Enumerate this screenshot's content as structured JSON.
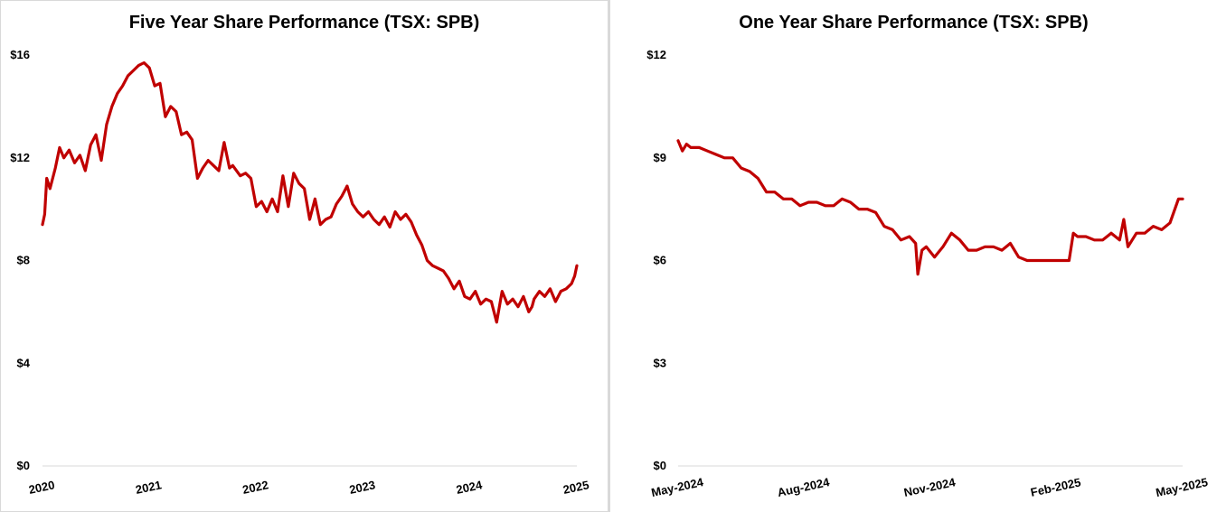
{
  "colors": {
    "line": "#c00000",
    "axis": "#d9d9d9",
    "background": "#ffffff"
  },
  "chart_data": [
    {
      "type": "line",
      "title": "Five Year Share Performance (TSX: SPB)",
      "xlabel": "",
      "ylabel": "",
      "ylim": [
        0,
        16
      ],
      "y_ticks": [
        0,
        4,
        8,
        12,
        16
      ],
      "y_tick_labels": [
        "$0",
        "$4",
        "$8",
        "$12",
        "$16"
      ],
      "xlim": [
        2020,
        2025
      ],
      "x_ticks": [
        2020,
        2021,
        2022,
        2023,
        2024,
        2025
      ],
      "x_tick_labels": [
        "2020",
        "2021",
        "2022",
        "2023",
        "2024",
        "2025"
      ],
      "x_tick_rotation": -12,
      "series": [
        {
          "name": "SPB",
          "x": [
            2020.0,
            2020.02,
            2020.04,
            2020.07,
            2020.12,
            2020.16,
            2020.2,
            2020.25,
            2020.3,
            2020.35,
            2020.4,
            2020.45,
            2020.5,
            2020.55,
            2020.6,
            2020.65,
            2020.7,
            2020.75,
            2020.8,
            2020.85,
            2020.9,
            2020.95,
            2021.0,
            2021.05,
            2021.1,
            2021.15,
            2021.2,
            2021.25,
            2021.3,
            2021.35,
            2021.4,
            2021.45,
            2021.5,
            2021.55,
            2021.6,
            2021.65,
            2021.7,
            2021.75,
            2021.78,
            2021.85,
            2021.9,
            2021.95,
            2022.0,
            2022.05,
            2022.1,
            2022.15,
            2022.2,
            2022.25,
            2022.3,
            2022.35,
            2022.4,
            2022.45,
            2022.5,
            2022.55,
            2022.6,
            2022.65,
            2022.7,
            2022.75,
            2022.8,
            2022.85,
            2022.9,
            2022.95,
            2023.0,
            2023.05,
            2023.1,
            2023.15,
            2023.2,
            2023.25,
            2023.3,
            2023.35,
            2023.4,
            2023.45,
            2023.5,
            2023.55,
            2023.6,
            2023.65,
            2023.7,
            2023.75,
            2023.8,
            2023.85,
            2023.9,
            2023.95,
            2024.0,
            2024.05,
            2024.1,
            2024.15,
            2024.2,
            2024.25,
            2024.3,
            2024.35,
            2024.4,
            2024.45,
            2024.5,
            2024.55,
            2024.58,
            2024.6,
            2024.65,
            2024.7,
            2024.75,
            2024.8,
            2024.85,
            2024.9,
            2024.95,
            2024.98,
            2025.0
          ],
          "values": [
            9.4,
            9.8,
            11.2,
            10.8,
            11.6,
            12.4,
            12.0,
            12.3,
            11.8,
            12.1,
            11.5,
            12.5,
            12.9,
            11.9,
            13.3,
            14.0,
            14.5,
            14.8,
            15.2,
            15.4,
            15.6,
            15.7,
            15.5,
            14.8,
            14.9,
            13.6,
            14.0,
            13.8,
            12.9,
            13.0,
            12.7,
            11.2,
            11.6,
            11.9,
            11.7,
            11.5,
            12.6,
            11.6,
            11.7,
            11.3,
            11.4,
            11.2,
            10.1,
            10.3,
            9.9,
            10.4,
            9.9,
            11.3,
            10.1,
            11.4,
            11.0,
            10.8,
            9.6,
            10.4,
            9.4,
            9.6,
            9.7,
            10.2,
            10.5,
            10.9,
            10.2,
            9.9,
            9.7,
            9.9,
            9.6,
            9.4,
            9.7,
            9.3,
            9.9,
            9.6,
            9.8,
            9.5,
            9.0,
            8.6,
            8.0,
            7.8,
            7.7,
            7.6,
            7.3,
            6.9,
            7.2,
            6.6,
            6.5,
            6.8,
            6.3,
            6.5,
            6.4,
            5.6,
            6.8,
            6.3,
            6.5,
            6.2,
            6.6,
            6.0,
            6.2,
            6.5,
            6.8,
            6.6,
            6.9,
            6.4,
            6.8,
            6.9,
            7.1,
            7.4,
            7.8
          ]
        }
      ]
    },
    {
      "type": "line",
      "title": "One Year Share Performance (TSX: SPB)",
      "xlabel": "",
      "ylabel": "",
      "ylim": [
        0,
        12
      ],
      "y_ticks": [
        0,
        3,
        6,
        9,
        12
      ],
      "y_tick_labels": [
        "$0",
        "$3",
        "$6",
        "$9",
        "$12"
      ],
      "xlim": [
        0,
        12
      ],
      "x_ticks": [
        0,
        3,
        6,
        9,
        12
      ],
      "x_tick_labels": [
        "May-2024",
        "Aug-2024",
        "Nov-2024",
        "Feb-2025",
        "May-2025"
      ],
      "x_tick_rotation": -12,
      "series": [
        {
          "name": "SPB",
          "x": [
            0.0,
            0.1,
            0.2,
            0.3,
            0.5,
            0.7,
            0.9,
            1.1,
            1.3,
            1.5,
            1.7,
            1.9,
            2.1,
            2.3,
            2.5,
            2.7,
            2.9,
            3.1,
            3.3,
            3.5,
            3.7,
            3.9,
            4.1,
            4.3,
            4.5,
            4.7,
            4.9,
            5.1,
            5.3,
            5.5,
            5.65,
            5.7,
            5.8,
            5.9,
            6.1,
            6.3,
            6.5,
            6.7,
            6.9,
            7.1,
            7.3,
            7.5,
            7.7,
            7.9,
            8.1,
            8.3,
            8.5,
            8.7,
            8.9,
            9.1,
            9.3,
            9.4,
            9.5,
            9.7,
            9.9,
            10.1,
            10.3,
            10.5,
            10.6,
            10.7,
            10.9,
            11.1,
            11.3,
            11.5,
            11.7,
            11.9,
            12.0
          ],
          "values": [
            9.5,
            9.2,
            9.4,
            9.3,
            9.3,
            9.2,
            9.1,
            9.0,
            9.0,
            8.7,
            8.6,
            8.4,
            8.0,
            8.0,
            7.8,
            7.8,
            7.6,
            7.7,
            7.7,
            7.6,
            7.6,
            7.8,
            7.7,
            7.5,
            7.5,
            7.4,
            7.0,
            6.9,
            6.6,
            6.7,
            6.5,
            5.6,
            6.3,
            6.4,
            6.1,
            6.4,
            6.8,
            6.6,
            6.3,
            6.3,
            6.4,
            6.4,
            6.3,
            6.5,
            6.1,
            6.0,
            6.0,
            6.0,
            6.0,
            6.0,
            6.0,
            6.8,
            6.7,
            6.7,
            6.6,
            6.6,
            6.8,
            6.6,
            7.2,
            6.4,
            6.8,
            6.8,
            7.0,
            6.9,
            7.1,
            7.8,
            7.8
          ]
        }
      ]
    }
  ]
}
